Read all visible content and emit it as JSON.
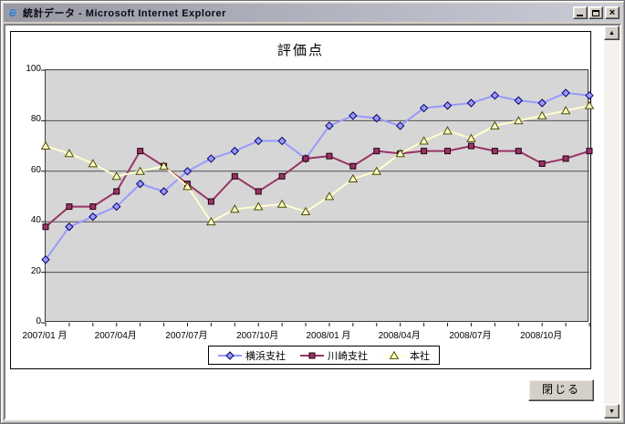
{
  "window": {
    "title": "統計データ - Microsoft Internet Explorer"
  },
  "icons": {
    "app_logo": "internet-explorer-e",
    "app_logo_glyph": "e",
    "minimize": "minimize-bar",
    "maximize": "maximize-box",
    "close_glyph": "×",
    "scroll_up_glyph": "▲",
    "scroll_down_glyph": "▼"
  },
  "colors": {
    "chrome": "#d4d0c8",
    "titlebar_start": "#9899a4",
    "titlebar_end": "#c9cbd6",
    "plot_background": "#d6d6d6"
  },
  "page": {
    "close_button_label": "閉じる"
  },
  "chart_data": {
    "type": "line",
    "title": "評価点",
    "months": 24,
    "x_start": "2007/01",
    "x_end": "2008/12",
    "x_labels_visible": [
      "2007/01 月",
      "2007/04月",
      "2007/07月",
      "2007/10月",
      "2008/01 月",
      "2008/04月",
      "2008/07月",
      "2008/10月"
    ],
    "x_label_interval": 3,
    "ylim": [
      0,
      100
    ],
    "yticks": [
      0,
      20,
      40,
      60,
      80,
      100
    ],
    "grid": true,
    "legend_position": "bottom",
    "series": [
      {
        "name": "横浜支社",
        "color": "#9999ff",
        "marker": "diamond",
        "marker_stroke": "#000066",
        "values": [
          25,
          38,
          42,
          46,
          55,
          52,
          60,
          65,
          68,
          72,
          72,
          65,
          78,
          82,
          81,
          78,
          85,
          86,
          87,
          90,
          88,
          87,
          91,
          90
        ]
      },
      {
        "name": "川崎支社",
        "color": "#993366",
        "marker": "square",
        "marker_stroke": "#24000f",
        "values": [
          38,
          46,
          46,
          52,
          68,
          62,
          55,
          48,
          58,
          52,
          58,
          65,
          66,
          62,
          68,
          67,
          68,
          68,
          70,
          68,
          68,
          63,
          65,
          68
        ]
      },
      {
        "name": "本社",
        "color": "#ffffcc",
        "marker": "triangle",
        "marker_stroke": "#4c4c00",
        "values": [
          70,
          67,
          63,
          58,
          60,
          62,
          54,
          40,
          45,
          46,
          47,
          44,
          50,
          57,
          60,
          67,
          72,
          76,
          73,
          78,
          80,
          82,
          84,
          86
        ]
      }
    ]
  }
}
